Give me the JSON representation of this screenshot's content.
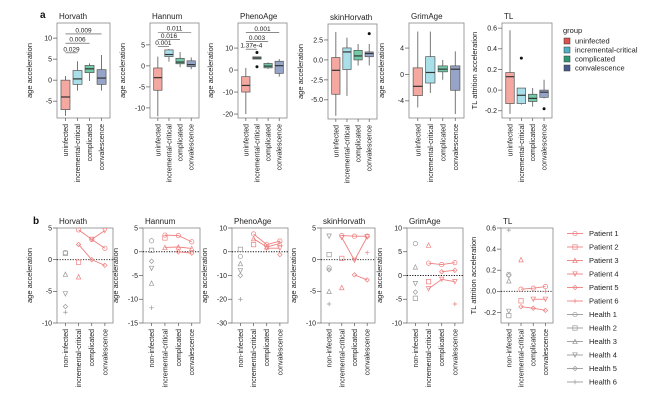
{
  "panel_labels": [
    "a",
    "b"
  ],
  "colors": {
    "uninfected": "#f4a8a0",
    "incremental-critical": "#a9dfe9",
    "complicated": "#72c9a8",
    "convalescence": "#97a4c9",
    "patient": "#ef7f7f",
    "health": "#9a9a9a"
  },
  "legend_a": {
    "title": "group",
    "items": [
      "uninfected",
      "incremental-critical",
      "complicated",
      "convalescence"
    ],
    "swatch_colors": [
      "#d9534f",
      "#4fb3c8",
      "#2e9a74",
      "#4a5a8c"
    ]
  },
  "legend_b": {
    "items": [
      "Patient 1",
      "Patient 2",
      "Patient 3",
      "Patient 4",
      "Patient 5",
      "Patient 6",
      "Health 1",
      "Health 2",
      "Health 3",
      "Health 4",
      "Health 5",
      "Health 6"
    ]
  },
  "chart_data": [
    {
      "panel": "a",
      "type": "box",
      "title": "Horvath",
      "ylabel": "age acceleration",
      "categories": [
        "uninfected",
        "incremental-critical",
        "complicated",
        "convalescence"
      ],
      "ylim": [
        -9,
        13.6
      ],
      "yticks": [
        -5,
        0,
        5,
        10
      ],
      "boxes": [
        {
          "stats": [
            -8.5,
            -7,
            -4,
            0,
            1
          ],
          "outliers": []
        },
        {
          "stats": [
            -2.5,
            -1,
            0.3,
            2.3,
            4.5
          ],
          "outliers": []
        },
        {
          "stats": [
            -0.2,
            1.8,
            2.7,
            3.5,
            4
          ],
          "outliers": []
        },
        {
          "stats": [
            -2.5,
            -1,
            0.5,
            2.5,
            6
          ],
          "outliers": []
        }
      ],
      "significance": [
        {
          "from": 0,
          "to": 1,
          "y": 6.5,
          "label": "0.029"
        },
        {
          "from": 0,
          "to": 2,
          "y": 8.8,
          "label": "0.006"
        },
        {
          "from": 0,
          "to": 3,
          "y": 11,
          "label": "0.009"
        }
      ]
    },
    {
      "panel": "a",
      "type": "box",
      "title": "Hannum",
      "ylabel": "age acceleration",
      "categories": [
        "uninfected",
        "incremental-critical",
        "complicated",
        "convalescence"
      ],
      "ylim": [
        -12.4,
        10.2
      ],
      "yticks": [
        -10,
        -5,
        0,
        5
      ],
      "boxes": [
        {
          "stats": [
            -12,
            -5.8,
            -2.8,
            -0.5,
            2.2
          ],
          "outliers": []
        },
        {
          "stats": [
            1,
            2.2,
            2.7,
            3.8,
            4
          ],
          "outliers": []
        },
        {
          "stats": [
            -0.3,
            0.5,
            0.9,
            1.8,
            3.3
          ],
          "outliers": []
        },
        {
          "stats": [
            -0.8,
            -0.2,
            0.3,
            1.2,
            2
          ],
          "outliers": []
        }
      ],
      "significance": [
        {
          "from": 0,
          "to": 1,
          "y": 4.6,
          "label": "0.001"
        },
        {
          "from": 0,
          "to": 2,
          "y": 6.3,
          "label": "0.016"
        },
        {
          "from": 0,
          "to": 3,
          "y": 8,
          "label": "0.011"
        }
      ]
    },
    {
      "panel": "a",
      "type": "box",
      "title": "PhenoAge",
      "ylabel": "age acceleration",
      "categories": [
        "uninfected",
        "incremental-critical",
        "complicated",
        "convalescence"
      ],
      "ylim": [
        -21.8,
        21.4
      ],
      "yticks": [
        -20,
        -10,
        0,
        10
      ],
      "boxes": [
        {
          "stats": [
            -20,
            -10,
            -7,
            -3,
            1
          ],
          "outliers": []
        },
        {
          "stats": [
            5,
            5,
            5.5,
            6,
            6
          ],
          "outliers": [
            8,
            1.5
          ]
        },
        {
          "stats": [
            0.5,
            1,
            1.8,
            3,
            3.5
          ],
          "outliers": []
        },
        {
          "stats": [
            -3,
            -1.5,
            2,
            4,
            5
          ],
          "outliers": []
        }
      ],
      "significance": [
        {
          "from": 0,
          "to": 1,
          "y": 9.5,
          "label": "1.37e-4"
        },
        {
          "from": 0,
          "to": 2,
          "y": 13,
          "label": "0.003"
        },
        {
          "from": 0,
          "to": 3,
          "y": 17,
          "label": "0.001"
        }
      ]
    },
    {
      "panel": "a",
      "type": "box",
      "title": "skinHorvath",
      "ylabel": "age acceleration",
      "categories": [
        "uninfected",
        "incremental-critical",
        "complicated",
        "convalescence"
      ],
      "ylim": [
        -7.4,
        4.5
      ],
      "yticks": [
        -5.0,
        -2.5,
        0.0,
        2.5
      ],
      "ytick_labels": [
        "-5.0",
        "-2.5",
        "0.0",
        "2.5"
      ],
      "boxes": [
        {
          "stats": [
            -7,
            -4.3,
            -1.3,
            0.3,
            3.5
          ],
          "outliers": []
        },
        {
          "stats": [
            -4.5,
            -1.2,
            1,
            1.5,
            2.8
          ],
          "outliers": []
        },
        {
          "stats": [
            -0.7,
            0,
            0.5,
            1.2,
            2
          ],
          "outliers": []
        },
        {
          "stats": [
            -0.7,
            0.4,
            0.8,
            1,
            2
          ],
          "outliers": [
            3.3
          ]
        }
      ],
      "significance": []
    },
    {
      "panel": "a",
      "type": "box",
      "title": "GrimAge",
      "ylabel": "age acceleration",
      "categories": [
        "uninfected",
        "incremental-critical",
        "complicated",
        "convalescence"
      ],
      "ylim": [
        -6.6,
        7.8
      ],
      "yticks": [
        -4,
        0,
        4
      ],
      "boxes": [
        {
          "stats": [
            -5,
            -3.2,
            -1.8,
            1,
            6.5
          ],
          "outliers": []
        },
        {
          "stats": [
            -2.8,
            -1.3,
            0.3,
            2.7,
            6.5
          ],
          "outliers": []
        },
        {
          "stats": [
            -0.8,
            0.4,
            0.8,
            1.3,
            2.2
          ],
          "outliers": []
        },
        {
          "stats": [
            -6,
            -2.4,
            0.8,
            1.3,
            3.5
          ],
          "outliers": []
        }
      ],
      "significance": []
    },
    {
      "panel": "a",
      "type": "box",
      "title": "TL",
      "ylabel": "TL attrition acceleration",
      "categories": [
        "uninfected",
        "incremental-critical",
        "complicated",
        "convalescence"
      ],
      "ylim": [
        -0.27,
        0.65
      ],
      "yticks": [
        -0.2,
        0.0,
        0.2,
        0.4,
        0.6
      ],
      "ytick_labels": [
        "-0.2",
        "0.0",
        "0.2",
        "0.4",
        "0.6"
      ],
      "boxes": [
        {
          "stats": [
            -0.23,
            -0.13,
            0.13,
            0.17,
            0.58
          ],
          "outliers": []
        },
        {
          "stats": [
            -0.14,
            -0.13,
            -0.05,
            0.02,
            0.02
          ],
          "outliers": [
            0.31
          ]
        },
        {
          "stats": [
            -0.16,
            -0.11,
            -0.08,
            -0.04,
            0.02
          ],
          "outliers": []
        },
        {
          "stats": [
            -0.08,
            -0.07,
            -0.02,
            0,
            0.1
          ],
          "outliers": [
            -0.18
          ]
        }
      ],
      "significance": []
    },
    {
      "panel": "b",
      "type": "line",
      "title": "Horvath",
      "ylabel": "age acceleration",
      "categories": [
        "non-infected",
        "incremental-critical",
        "complicated",
        "convalescence"
      ],
      "ylim": [
        -10,
        5
      ],
      "yticks": [
        -10,
        -5,
        0,
        5
      ],
      "health": [
        1.1,
        1.0,
        -2.3,
        -5.4,
        -7.4,
        -8.3
      ],
      "patients": [
        [
          null,
          4.7,
          3.2,
          1.8
        ],
        [
          null,
          -0.4,
          null,
          null
        ],
        [
          null,
          -2.7,
          null,
          null
        ],
        [
          null,
          null,
          3.2,
          4.6
        ],
        [
          null,
          2.4,
          0,
          -0.9
        ],
        [
          null,
          null,
          null,
          null
        ]
      ]
    },
    {
      "panel": "b",
      "type": "line",
      "title": "Hannum",
      "ylabel": "age acceleration",
      "categories": [
        "non-infected",
        "incremental-critical",
        "complicated",
        "convalescence"
      ],
      "ylim": [
        -15,
        5
      ],
      "yticks": [
        -15,
        -10,
        -5,
        0,
        5
      ],
      "health": [
        2.3,
        0.3,
        -6.6,
        -3.5,
        -2.0,
        -11.8
      ],
      "patients": [
        [
          null,
          3.5,
          3.4,
          2.1
        ],
        [
          null,
          2.9,
          null,
          null
        ],
        [
          null,
          0.9,
          1.0,
          0.7
        ],
        [
          null,
          null,
          null,
          null
        ],
        [
          null,
          null,
          0,
          -0.3
        ],
        [
          null,
          null,
          null,
          null
        ]
      ]
    },
    {
      "panel": "b",
      "type": "line",
      "title": "PhenoAge",
      "ylabel": "age acceleration",
      "categories": [
        "non-infected",
        "incremental-critical",
        "complicated",
        "convalescence"
      ],
      "ylim": [
        -30,
        10
      ],
      "yticks": [
        -30,
        -20,
        -10,
        0,
        10
      ],
      "health": [
        -2,
        1,
        -5,
        -8,
        -10,
        -20
      ],
      "patients": [
        [
          null,
          7.5,
          3,
          4.5
        ],
        [
          null,
          3,
          null,
          null
        ],
        [
          null,
          5.5,
          2,
          3.5
        ],
        [
          null,
          null,
          1.5,
          1.5
        ],
        [
          null,
          null,
          null,
          -1.2
        ],
        [
          null,
          null,
          null,
          null
        ]
      ]
    },
    {
      "panel": "b",
      "type": "line",
      "title": "skinHorvath",
      "ylabel": "age acceleration",
      "categories": [
        "non-infected",
        "incremental-critical",
        "complicated",
        "convalescence"
      ],
      "ylim": [
        -10,
        5
      ],
      "yticks": [
        -10,
        -5,
        0,
        5
      ],
      "health": [
        -1.3,
        0.8,
        -5,
        3.7,
        -1.6,
        -7
      ],
      "patients": [
        [
          null,
          3.8,
          3.7,
          3.7
        ],
        [
          null,
          0.2,
          null,
          null
        ],
        [
          null,
          -4.4,
          null,
          null
        ],
        [
          null,
          3.5,
          -0.1,
          3.6
        ],
        [
          null,
          null,
          -2.4,
          -3.2
        ],
        [
          null,
          null,
          null,
          1.1
        ]
      ]
    },
    {
      "panel": "b",
      "type": "line",
      "title": "GrimAge",
      "ylabel": "age acceleration",
      "categories": [
        "non-infected",
        "incremental-critical",
        "complicated",
        "convalescence"
      ],
      "ylim": [
        -10,
        10
      ],
      "yticks": [
        -10,
        -5,
        0,
        5,
        10
      ],
      "health": [
        6.7,
        -4.8,
        1.8,
        -1.7,
        -3.5,
        null
      ],
      "patients": [
        [
          null,
          2.6,
          2.3,
          2.7
        ],
        [
          null,
          -1.3,
          null,
          null
        ],
        [
          null,
          6.4,
          null,
          null
        ],
        [
          null,
          -2.8,
          -0.8,
          -1.3
        ],
        [
          null,
          null,
          0.8,
          1.1
        ],
        [
          null,
          null,
          null,
          -6
        ]
      ]
    },
    {
      "panel": "b",
      "type": "line",
      "title": "TL",
      "ylabel": "TL attrition acceleration",
      "categories": [
        "non-infected",
        "incremental-critical",
        "complicated",
        "convalescence"
      ],
      "ylim": [
        -0.3,
        0.6
      ],
      "yticks": [
        -0.2,
        0.0,
        0.2,
        0.4,
        0.6
      ],
      "ytick_labels": [
        "-0.2",
        "0.0",
        "0.2",
        "0.4",
        "0.6"
      ],
      "health": [
        0.16,
        -0.23,
        0.1,
        -0.19,
        0.15,
        0.58
      ],
      "patients": [
        [
          null,
          0.02,
          0.03,
          0.045
        ],
        [
          null,
          -0.09,
          null,
          null
        ],
        [
          null,
          0.3,
          null,
          null
        ],
        [
          null,
          null,
          -0.075,
          -0.075
        ],
        [
          null,
          -0.145,
          -0.16,
          -0.18
        ],
        [
          null,
          null,
          null,
          0
        ]
      ]
    }
  ]
}
